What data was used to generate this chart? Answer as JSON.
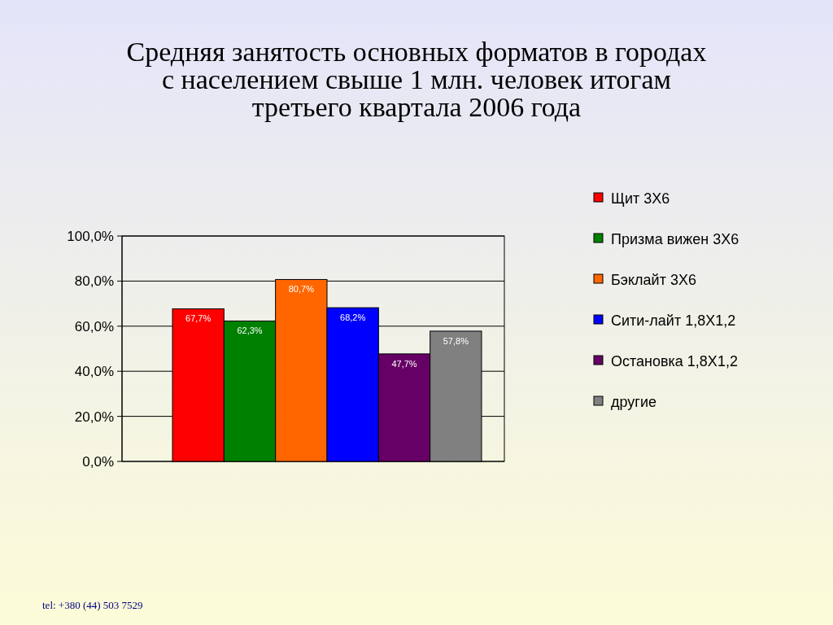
{
  "chart_data": {
    "type": "bar",
    "title": "Средняя занятость основных форматов в городах\nс населением свыше 1 млн. человек итогам\nтретьего квартала 2006 года",
    "categories": [
      null
    ],
    "series": [
      {
        "name": "Щит 3Х6",
        "color": "#ff0000",
        "values": [
          67.7
        ],
        "value_labels": [
          "67,7%"
        ]
      },
      {
        "name": "Призма вижен 3Х6",
        "color": "#008000",
        "values": [
          62.3
        ],
        "value_labels": [
          "62,3%"
        ]
      },
      {
        "name": "Бэклайт 3Х6",
        "color": "#ff6600",
        "values": [
          80.7
        ],
        "value_labels": [
          "80,7%"
        ]
      },
      {
        "name": "Сити-лайт 1,8Х1,2",
        "color": "#0000ff",
        "values": [
          68.2
        ],
        "value_labels": [
          "68,2%"
        ]
      },
      {
        "name": "Остановка 1,8Х1,2",
        "color": "#660066",
        "values": [
          47.7
        ],
        "value_labels": [
          "47,7%"
        ]
      },
      {
        "name": "другие",
        "color": "#808080",
        "values": [
          57.8
        ],
        "value_labels": [
          "57,8%"
        ]
      }
    ],
    "ylim": [
      0,
      100
    ],
    "yticks": [
      {
        "value": 0,
        "label": "0,0%"
      },
      {
        "value": 20,
        "label": "20,0%"
      },
      {
        "value": 40,
        "label": "40,0%"
      },
      {
        "value": 60,
        "label": "60,0%"
      },
      {
        "value": 80,
        "label": "80,0%"
      },
      {
        "value": 100,
        "label": "100,0%"
      }
    ],
    "grid": "y",
    "legend": "right",
    "annotations": [
      "tel: +380 (44) 503 7529"
    ]
  }
}
